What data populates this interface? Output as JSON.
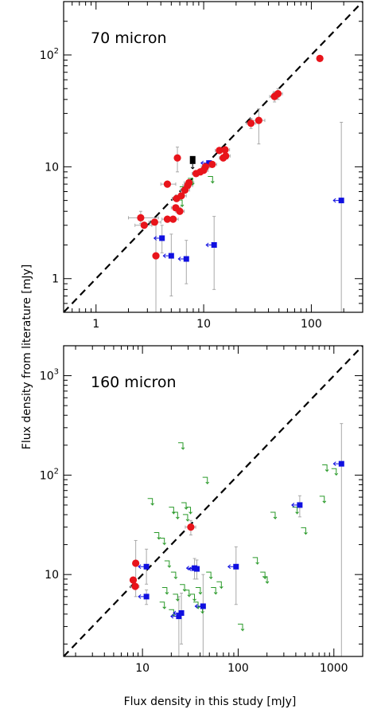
{
  "shared_xlabel": "Flux density in this study [mJy]",
  "shared_ylabel": "Flux density from literature [mJy]",
  "colors": {
    "detection": "#e8141b",
    "blue_limit": "#1010e0",
    "green_limit": "#2a9a2a",
    "black_limit": "#000000",
    "errorbar": "#a9a9a9",
    "one_to_one": "#000000"
  },
  "chart_data": [
    {
      "type": "scatter",
      "title": "70 micron",
      "xscale": "log",
      "yscale": "log",
      "xlim": [
        0.5,
        300
      ],
      "ylim": [
        0.5,
        300
      ],
      "xticks": [
        {
          "value": 1,
          "label": "1"
        },
        {
          "value": 10,
          "label": "10"
        },
        {
          "value": 100,
          "label": "100"
        }
      ],
      "yticks": [
        {
          "value": 1,
          "label": "1"
        },
        {
          "value": 10,
          "label": "10"
        },
        {
          "value": 100,
          "label": "10²"
        }
      ],
      "one_to_one_line": true,
      "detections": [
        {
          "x": 2.6,
          "y": 3.5,
          "xerr": [
            2.0,
            3.8
          ],
          "yerr": [
            3.1,
            4.0
          ]
        },
        {
          "x": 2.8,
          "y": 3.0,
          "xerr": [
            2.3,
            3.3
          ]
        },
        {
          "x": 3.5,
          "y": 3.2,
          "xerr": [
            3.1,
            4.0
          ]
        },
        {
          "x": 3.6,
          "y": 1.6,
          "yerr": [
            0.5,
            3.1
          ]
        },
        {
          "x": 4.6,
          "y": 3.4,
          "xerr": [
            4.1,
            5.2
          ]
        },
        {
          "x": 4.6,
          "y": 7.0,
          "xerr": [
            4.0,
            5.5
          ]
        },
        {
          "x": 5.2,
          "y": 3.4,
          "xerr": [
            4.6,
            5.8
          ]
        },
        {
          "x": 5.5,
          "y": 4.3,
          "xerr": [
            5.0,
            6.1
          ]
        },
        {
          "x": 5.6,
          "y": 5.2,
          "xerr": [
            5.1,
            6.2
          ]
        },
        {
          "x": 5.7,
          "y": 12.0,
          "yerr": [
            9.0,
            15.0
          ]
        },
        {
          "x": 6.0,
          "y": 4.0,
          "xerr": [
            5.5,
            6.6
          ]
        },
        {
          "x": 6.2,
          "y": 5.5,
          "xerr": [
            5.6,
            6.9
          ]
        },
        {
          "x": 6.7,
          "y": 6.2,
          "xerr": [
            6.1,
            7.4
          ]
        },
        {
          "x": 7.1,
          "y": 6.8,
          "xerr": [
            6.4,
            7.9
          ]
        },
        {
          "x": 7.3,
          "y": 7.2,
          "xerr": [
            6.6,
            8.1
          ]
        },
        {
          "x": 8.5,
          "y": 8.7,
          "xerr": [
            7.8,
            9.4
          ]
        },
        {
          "x": 9.3,
          "y": 9.0,
          "xerr": [
            8.5,
            10.2
          ]
        },
        {
          "x": 10.0,
          "y": 9.3,
          "xerr": [
            9.1,
            11.0
          ]
        },
        {
          "x": 10.4,
          "y": 10.0,
          "xerr": [
            9.5,
            11.4
          ]
        },
        {
          "x": 12.0,
          "y": 10.5,
          "xerr": [
            11.0,
            13.2
          ]
        },
        {
          "x": 14.0,
          "y": 14.0,
          "xerr": [
            12.8,
            15.4
          ]
        },
        {
          "x": 15.2,
          "y": 12.0,
          "xerr": [
            14.0,
            16.8
          ]
        },
        {
          "x": 15.8,
          "y": 14.2,
          "xerr": [
            14.5,
            17.4
          ]
        },
        {
          "x": 16.0,
          "y": 12.5,
          "xerr": [
            14.6,
            17.6
          ]
        },
        {
          "x": 27.5,
          "y": 24.5,
          "xerr": [
            25.0,
            30.5
          ],
          "yerr": [
            22.0,
            27.0
          ]
        },
        {
          "x": 32.5,
          "y": 26.0,
          "xerr": [
            28.0,
            37.0
          ],
          "yerr": [
            16.0,
            33.0
          ]
        },
        {
          "x": 45.5,
          "y": 42.5,
          "xerr": [
            41.0,
            50.0
          ],
          "yerr": [
            38.0,
            47.0
          ]
        },
        {
          "x": 49.0,
          "y": 45.0,
          "xerr": [
            44.0,
            54.0
          ],
          "yerr": [
            40.0,
            50.0
          ]
        },
        {
          "x": 120.0,
          "y": 93.0
        }
      ],
      "blue_upper_limits": [
        {
          "x": 4.1,
          "y": 2.3,
          "yerr": [
            1.7,
            3.0
          ]
        },
        {
          "x": 5.0,
          "y": 1.6,
          "yerr": [
            0.7,
            2.5
          ]
        },
        {
          "x": 6.9,
          "y": 1.5,
          "yerr": [
            0.9,
            2.2
          ]
        },
        {
          "x": 12.5,
          "y": 2.0,
          "yerr": [
            0.8,
            3.6
          ]
        },
        {
          "x": 11.2,
          "y": 10.8
        },
        {
          "x": 190.0,
          "y": 5.0,
          "yerr": [
            0.5,
            25.0
          ]
        }
      ],
      "green_upper_limits": [
        {
          "x": 6.0,
          "y": 4.8
        },
        {
          "x": 6.3,
          "y": 6.3
        },
        {
          "x": 7.5,
          "y": 7.5
        },
        {
          "x": 11.5,
          "y": 7.8
        }
      ],
      "black_upper_limits": [
        {
          "x": 7.9,
          "y": 11.5
        }
      ]
    },
    {
      "type": "scatter",
      "title": "160 micron",
      "xscale": "log",
      "yscale": "log",
      "xlim": [
        1.5,
        2000
      ],
      "ylim": [
        1.5,
        2000
      ],
      "xticks": [
        {
          "value": 10,
          "label": "10"
        },
        {
          "value": 100,
          "label": "100"
        },
        {
          "value": 1000,
          "label": "1000"
        }
      ],
      "yticks": [
        {
          "value": 10,
          "label": "10"
        },
        {
          "value": 100,
          "label": "10²"
        },
        {
          "value": 1000,
          "label": "10³"
        }
      ],
      "one_to_one_line": true,
      "detections": [
        {
          "x": 8.5,
          "y": 13.0,
          "yerr": [
            6.0,
            22.0
          ]
        },
        {
          "x": 8.0,
          "y": 8.8
        },
        {
          "x": 8.4,
          "y": 7.6,
          "xerr": [
            7.5,
            9.2
          ]
        },
        {
          "x": 32.0,
          "y": 30.0,
          "xerr": [
            28.0,
            36.0
          ],
          "yerr": [
            25.0,
            35.0
          ]
        }
      ],
      "blue_upper_limits": [
        {
          "x": 11.0,
          "y": 12.0,
          "yerr": [
            8.0,
            18.0
          ]
        },
        {
          "x": 11.0,
          "y": 6.0,
          "yerr": [
            5.0,
            7.0
          ]
        },
        {
          "x": 24.0,
          "y": 3.8,
          "yerr": [
            1.5,
            6.0
          ]
        },
        {
          "x": 25.5,
          "y": 4.1,
          "yerr": [
            2.0,
            6.5
          ]
        },
        {
          "x": 35.0,
          "y": 11.6,
          "yerr": [
            9.0,
            14.5
          ]
        },
        {
          "x": 37.0,
          "y": 11.4,
          "yerr": [
            9.0,
            14.0
          ]
        },
        {
          "x": 43.0,
          "y": 4.8,
          "yerr": [
            1.5,
            10.0
          ]
        },
        {
          "x": 95.0,
          "y": 12.0,
          "yerr": [
            5.0,
            19.0
          ]
        },
        {
          "x": 440.0,
          "y": 50.0,
          "yerr": [
            38.0,
            62.0
          ]
        },
        {
          "x": 1200.0,
          "y": 130.0,
          "yerr": [
            1.5,
            330.0
          ]
        }
      ],
      "green_upper_limits": [
        {
          "x": 25,
          "y": 200
        },
        {
          "x": 45,
          "y": 90
        },
        {
          "x": 12,
          "y": 55
        },
        {
          "x": 20,
          "y": 45
        },
        {
          "x": 22,
          "y": 40
        },
        {
          "x": 27,
          "y": 50
        },
        {
          "x": 28,
          "y": 38
        },
        {
          "x": 30,
          "y": 45
        },
        {
          "x": 14,
          "y": 25
        },
        {
          "x": 16,
          "y": 22
        },
        {
          "x": 18,
          "y": 13
        },
        {
          "x": 21,
          "y": 10
        },
        {
          "x": 17,
          "y": 7
        },
        {
          "x": 22,
          "y": 6
        },
        {
          "x": 26,
          "y": 7.5
        },
        {
          "x": 29,
          "y": 6.6
        },
        {
          "x": 16,
          "y": 5
        },
        {
          "x": 20,
          "y": 4.2
        },
        {
          "x": 49,
          "y": 10
        },
        {
          "x": 55,
          "y": 7
        },
        {
          "x": 63,
          "y": 8
        },
        {
          "x": 36,
          "y": 5
        },
        {
          "x": 40,
          "y": 4.5
        },
        {
          "x": 33,
          "y": 6
        },
        {
          "x": 38,
          "y": 7
        },
        {
          "x": 150,
          "y": 14
        },
        {
          "x": 180,
          "y": 10
        },
        {
          "x": 190,
          "y": 9
        },
        {
          "x": 105,
          "y": 3
        },
        {
          "x": 230,
          "y": 40
        },
        {
          "x": 390,
          "y": 45
        },
        {
          "x": 480,
          "y": 28
        },
        {
          "x": 750,
          "y": 58
        },
        {
          "x": 800,
          "y": 120
        },
        {
          "x": 1000,
          "y": 110
        }
      ],
      "black_upper_limits": []
    }
  ]
}
